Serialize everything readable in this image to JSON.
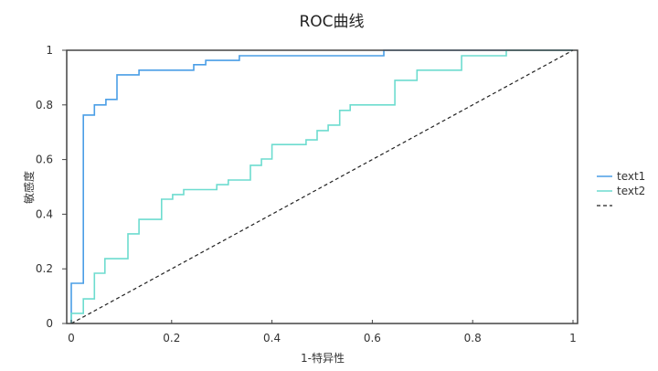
{
  "chart_data": {
    "type": "line",
    "title": "ROC曲线",
    "xlabel": "1-特异性",
    "ylabel": "敏感度",
    "xlim": [
      0,
      1
    ],
    "ylim": [
      0,
      1
    ],
    "xticks": [
      "0",
      "0.2",
      "0.4",
      "0.6",
      "0.8",
      "1"
    ],
    "yticks": [
      "0",
      "0.2",
      "0.4",
      "0.6",
      "0.8",
      "1"
    ],
    "grid": false,
    "legend_position": "right",
    "series": [
      {
        "name": "text1",
        "color": "#4a9ee6",
        "style": "step",
        "points": [
          [
            0,
            0
          ],
          [
            0,
            0.147
          ],
          [
            0.024,
            0.147
          ],
          [
            0.024,
            0.763
          ],
          [
            0.046,
            0.763
          ],
          [
            0.046,
            0.8
          ],
          [
            0.069,
            0.8
          ],
          [
            0.069,
            0.82
          ],
          [
            0.091,
            0.82
          ],
          [
            0.091,
            0.91
          ],
          [
            0.135,
            0.91
          ],
          [
            0.135,
            0.927
          ],
          [
            0.244,
            0.927
          ],
          [
            0.244,
            0.947
          ],
          [
            0.268,
            0.947
          ],
          [
            0.268,
            0.963
          ],
          [
            0.335,
            0.963
          ],
          [
            0.335,
            0.98
          ],
          [
            0.623,
            0.98
          ],
          [
            0.623,
            1
          ],
          [
            1,
            1
          ]
        ]
      },
      {
        "name": "text2",
        "color": "#6ddccf",
        "style": "step",
        "points": [
          [
            0,
            0
          ],
          [
            0,
            0.037
          ],
          [
            0.024,
            0.037
          ],
          [
            0.024,
            0.09
          ],
          [
            0.046,
            0.09
          ],
          [
            0.046,
            0.184
          ],
          [
            0.067,
            0.184
          ],
          [
            0.067,
            0.237
          ],
          [
            0.113,
            0.237
          ],
          [
            0.113,
            0.328
          ],
          [
            0.135,
            0.328
          ],
          [
            0.135,
            0.381
          ],
          [
            0.18,
            0.381
          ],
          [
            0.18,
            0.455
          ],
          [
            0.202,
            0.455
          ],
          [
            0.202,
            0.472
          ],
          [
            0.224,
            0.472
          ],
          [
            0.224,
            0.49
          ],
          [
            0.29,
            0.49
          ],
          [
            0.29,
            0.508
          ],
          [
            0.313,
            0.508
          ],
          [
            0.313,
            0.525
          ],
          [
            0.357,
            0.525
          ],
          [
            0.357,
            0.579
          ],
          [
            0.379,
            0.579
          ],
          [
            0.379,
            0.602
          ],
          [
            0.4,
            0.602
          ],
          [
            0.4,
            0.655
          ],
          [
            0.468,
            0.655
          ],
          [
            0.468,
            0.672
          ],
          [
            0.49,
            0.672
          ],
          [
            0.49,
            0.706
          ],
          [
            0.512,
            0.706
          ],
          [
            0.512,
            0.726
          ],
          [
            0.535,
            0.726
          ],
          [
            0.535,
            0.78
          ],
          [
            0.556,
            0.78
          ],
          [
            0.556,
            0.8
          ],
          [
            0.645,
            0.8
          ],
          [
            0.645,
            0.89
          ],
          [
            0.689,
            0.89
          ],
          [
            0.689,
            0.927
          ],
          [
            0.778,
            0.927
          ],
          [
            0.778,
            0.98
          ],
          [
            0.867,
            0.98
          ],
          [
            0.867,
            1
          ],
          [
            1,
            1
          ]
        ]
      },
      {
        "name": "",
        "color": "#222222",
        "style": "dashed",
        "points": [
          [
            0,
            0
          ],
          [
            1,
            1
          ]
        ]
      }
    ]
  }
}
